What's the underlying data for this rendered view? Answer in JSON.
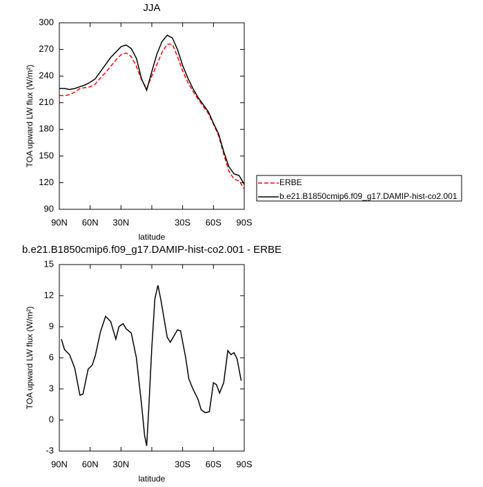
{
  "chart_data": [
    {
      "type": "line",
      "title": "JJA",
      "xlabel": "latitude",
      "ylabel": "TOA upward LW flux (W/m²)",
      "x": [
        90,
        85,
        80,
        75,
        70,
        65,
        60,
        55,
        50,
        45,
        40,
        35,
        30,
        25,
        20,
        15,
        10,
        5,
        0,
        -5,
        -10,
        -15,
        -20,
        -25,
        -30,
        -35,
        -40,
        -45,
        -50,
        -55,
        -60,
        -65,
        -70,
        -75,
        -80,
        -85,
        -90
      ],
      "series": [
        {
          "name": "ERBE",
          "color": "#ff0000",
          "dashed": true,
          "values": [
            218,
            218,
            219,
            222,
            226,
            227,
            228,
            231,
            238,
            244,
            251,
            258,
            264,
            266,
            262,
            251,
            236,
            226,
            240,
            253,
            267,
            276,
            276,
            262,
            246,
            233,
            223,
            214,
            206,
            198,
            186,
            173,
            152,
            133,
            124,
            122,
            113
          ]
        },
        {
          "name": "b.e21.B1850cmip6.f09_g17.DAMIP-hist-co2.001",
          "color": "#000000",
          "dashed": false,
          "values": [
            226,
            226,
            225,
            226,
            228,
            230,
            233,
            237,
            245,
            253,
            261,
            267,
            273,
            275,
            271,
            260,
            237,
            224,
            245,
            265,
            279,
            286,
            283,
            270,
            252,
            238,
            226,
            216,
            208,
            200,
            187,
            175,
            155,
            138,
            130,
            128,
            118
          ]
        }
      ],
      "xlim": [
        90,
        -90
      ],
      "xticks": [
        {
          "value": 90,
          "label": "90N"
        },
        {
          "value": 60,
          "label": "60N"
        },
        {
          "value": 30,
          "label": "30N"
        },
        {
          "value": 0,
          "label": null
        },
        {
          "value": -30,
          "label": "30S"
        },
        {
          "value": -60,
          "label": "60S"
        },
        {
          "value": -90,
          "label": "90S"
        }
      ],
      "ylim": [
        90,
        300
      ],
      "yticks": [
        90,
        120,
        150,
        180,
        210,
        240,
        270,
        300
      ],
      "legend": "right"
    },
    {
      "type": "line",
      "title": "b.e21.B1850cmip6.f09_g17.DAMIP-hist-co2.001 - ERBE",
      "xlabel": "latitude",
      "ylabel": "TOA upward LW flux (W/m²)",
      "x": [
        88,
        85,
        80,
        75,
        70,
        67,
        62,
        58,
        55,
        50,
        45,
        40,
        35,
        32,
        28,
        25,
        20,
        15,
        10,
        7,
        5,
        3,
        0,
        -3,
        -6,
        -9,
        -15,
        -18,
        -25,
        -28,
        -33,
        -36,
        -40,
        -45,
        -48,
        -52,
        -56,
        -60,
        -63,
        -66,
        -70,
        -74,
        -77,
        -80,
        -83,
        -87
      ],
      "series": [
        {
          "name": null,
          "color": "#000000",
          "dashed": false,
          "values": [
            7.8,
            6.8,
            6.3,
            5.0,
            2.4,
            2.5,
            4.9,
            5.3,
            6.2,
            8.5,
            10.0,
            9.5,
            7.8,
            9.0,
            9.3,
            8.8,
            8.4,
            6.0,
            1.5,
            -1.5,
            -2.5,
            1.0,
            7.0,
            11.7,
            13.0,
            11.5,
            8.0,
            7.5,
            8.7,
            8.6,
            6.0,
            4.0,
            3.0,
            2.0,
            1.0,
            0.7,
            0.8,
            3.6,
            3.4,
            2.6,
            3.6,
            6.7,
            6.3,
            6.5,
            5.9,
            3.8
          ]
        }
      ],
      "xlim": [
        90,
        -90
      ],
      "xticks": [
        {
          "value": 90,
          "label": "90N"
        },
        {
          "value": 60,
          "label": "60N"
        },
        {
          "value": 30,
          "label": "30N"
        },
        {
          "value": 0,
          "label": null
        },
        {
          "value": -30,
          "label": "30S"
        },
        {
          "value": -60,
          "label": "60S"
        },
        {
          "value": -90,
          "label": "90S"
        }
      ],
      "ylim": [
        -3,
        15
      ],
      "yticks": [
        -3,
        0,
        3,
        6,
        9,
        12,
        15
      ]
    }
  ]
}
